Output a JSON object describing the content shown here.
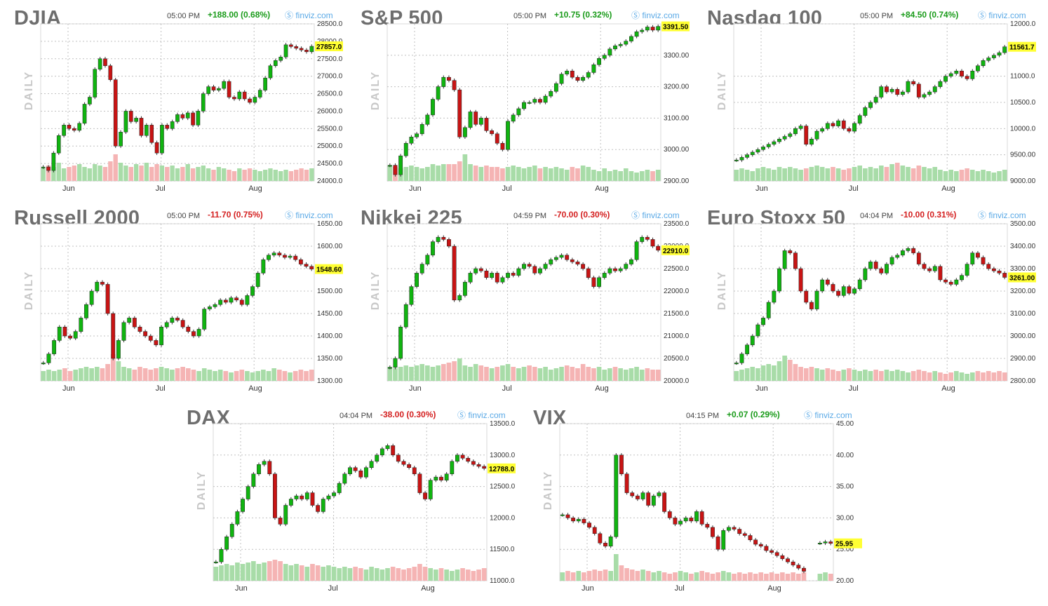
{
  "chart_data": [
    {
      "type": "candlestick",
      "title": "DJIA",
      "time": "05:00 PM",
      "change": "+188.00 (0.68%)",
      "change_dir": "up",
      "source": "finviz.com",
      "period_label": "DAILY",
      "yticks": [
        "28500.0",
        "28000.0",
        "27500.0",
        "27000.0",
        "26500.0",
        "26000.0",
        "25500.0",
        "25000.0",
        "24500.0",
        "24000.0"
      ],
      "ylim": [
        24000,
        28500
      ],
      "months": [
        "Jun",
        "Jul",
        "Aug"
      ],
      "last_label": "27857.0",
      "closes": [
        24400,
        24300,
        24800,
        25300,
        25600,
        25500,
        25450,
        25650,
        26200,
        26400,
        27200,
        27500,
        27300,
        26900,
        25000,
        25400,
        26000,
        25700,
        25800,
        25300,
        25600,
        25100,
        24800,
        25600,
        25500,
        25700,
        25900,
        25800,
        25950,
        25600,
        26000,
        26500,
        26700,
        26600,
        26650,
        26850,
        26400,
        26350,
        26550,
        26350,
        26250,
        26400,
        26600,
        26950,
        27300,
        27450,
        27550,
        27900,
        27850,
        27800,
        27750,
        27700,
        27857
      ],
      "volumes": [
        0.45,
        0.55,
        0.5,
        0.65,
        0.45,
        0.5,
        0.55,
        0.6,
        0.5,
        0.45,
        0.6,
        0.55,
        0.5,
        0.7,
        0.95,
        0.65,
        0.55,
        0.5,
        0.6,
        0.55,
        0.65,
        0.5,
        0.6,
        0.55,
        0.5,
        0.55,
        0.45,
        0.5,
        0.6,
        0.45,
        0.5,
        0.55,
        0.45,
        0.4,
        0.5,
        0.45,
        0.4,
        0.35,
        0.45,
        0.4,
        0.45,
        0.4,
        0.35,
        0.4,
        0.45,
        0.4,
        0.35,
        0.4,
        0.35,
        0.4,
        0.45,
        0.4,
        0.45
      ]
    },
    {
      "type": "candlestick",
      "title": "S&P 500",
      "time": "05:00 PM",
      "change": "+10.75 (0.32%)",
      "change_dir": "up",
      "source": "finviz.com",
      "period_label": "DAILY",
      "yticks": [
        "3300.00",
        "3200.00",
        "3100.00",
        "3000.00",
        "2900.00"
      ],
      "ylim": [
        2900,
        3400
      ],
      "months": [
        "Jun",
        "Jul",
        "Aug"
      ],
      "last_label": "3391.50",
      "closes": [
        2950,
        2920,
        2980,
        3020,
        3040,
        3050,
        3080,
        3110,
        3160,
        3200,
        3230,
        3220,
        3190,
        3040,
        3070,
        3120,
        3080,
        3100,
        3060,
        3050,
        3020,
        3000,
        3090,
        3110,
        3130,
        3150,
        3150,
        3160,
        3150,
        3170,
        3185,
        3210,
        3240,
        3250,
        3230,
        3220,
        3230,
        3245,
        3270,
        3290,
        3300,
        3320,
        3330,
        3335,
        3345,
        3360,
        3375,
        3380,
        3390,
        3380,
        3392
      ],
      "volumes": [
        0.55,
        0.5,
        0.45,
        0.5,
        0.55,
        0.5,
        0.45,
        0.5,
        0.6,
        0.55,
        0.6,
        0.6,
        0.6,
        0.7,
        0.95,
        0.6,
        0.55,
        0.5,
        0.55,
        0.5,
        0.5,
        0.45,
        0.5,
        0.55,
        0.5,
        0.45,
        0.5,
        0.55,
        0.45,
        0.5,
        0.45,
        0.5,
        0.45,
        0.4,
        0.5,
        0.45,
        0.55,
        0.5,
        0.4,
        0.35,
        0.45,
        0.35,
        0.4,
        0.35,
        0.45,
        0.35,
        0.3,
        0.35,
        0.4,
        0.35,
        0.4
      ]
    },
    {
      "type": "candlestick",
      "title": "Nasdaq 100",
      "time": "05:00 PM",
      "change": "+84.50 (0.74%)",
      "change_dir": "up",
      "source": "finviz.com",
      "period_label": "DAILY",
      "yticks": [
        "12000.0",
        "11000.0",
        "10500.0",
        "10000.0",
        "9500.00",
        "9000.00"
      ],
      "ylim": [
        9000,
        12000
      ],
      "months": [
        "Jun",
        "Jul",
        "Aug"
      ],
      "last_label": "11561.7",
      "closes": [
        9400,
        9450,
        9500,
        9550,
        9600,
        9650,
        9700,
        9750,
        9800,
        9850,
        9900,
        10000,
        10050,
        9700,
        9800,
        9950,
        10000,
        10100,
        10050,
        10150,
        10000,
        9950,
        10100,
        10250,
        10400,
        10500,
        10600,
        10800,
        10700,
        10750,
        10650,
        10700,
        10900,
        10850,
        10600,
        10650,
        10700,
        10800,
        10900,
        11000,
        11050,
        11100,
        11000,
        10950,
        11100,
        11200,
        11300,
        11350,
        11400,
        11450,
        11562
      ],
      "volumes": [
        0.4,
        0.45,
        0.4,
        0.35,
        0.45,
        0.5,
        0.45,
        0.4,
        0.5,
        0.45,
        0.5,
        0.45,
        0.4,
        0.45,
        0.5,
        0.55,
        0.5,
        0.45,
        0.5,
        0.45,
        0.4,
        0.45,
        0.5,
        0.55,
        0.45,
        0.5,
        0.45,
        0.55,
        0.5,
        0.6,
        0.65,
        0.55,
        0.5,
        0.45,
        0.55,
        0.5,
        0.45,
        0.5,
        0.4,
        0.35,
        0.4,
        0.35,
        0.4,
        0.45,
        0.4,
        0.35,
        0.4,
        0.35,
        0.3,
        0.35,
        0.4
      ]
    },
    {
      "type": "candlestick",
      "title": "Russell 2000",
      "time": "05:00 PM",
      "change": "-11.70 (0.75%)",
      "change_dir": "down",
      "source": "finviz.com",
      "period_label": "DAILY",
      "yticks": [
        "1650.00",
        "1600.00",
        "1550.00",
        "1500.00",
        "1450.00",
        "1400.00",
        "1350.00",
        "1300.00"
      ],
      "ylim": [
        1300,
        1650
      ],
      "months": [
        "Jun",
        "Jul",
        "Aug"
      ],
      "last_label": "1548.60",
      "closes": [
        1340,
        1360,
        1390,
        1420,
        1400,
        1395,
        1410,
        1440,
        1470,
        1500,
        1520,
        1515,
        1450,
        1350,
        1390,
        1430,
        1440,
        1420,
        1410,
        1400,
        1390,
        1380,
        1420,
        1430,
        1440,
        1435,
        1420,
        1410,
        1400,
        1415,
        1460,
        1465,
        1470,
        1480,
        1475,
        1485,
        1480,
        1470,
        1490,
        1510,
        1540,
        1570,
        1580,
        1585,
        1580,
        1575,
        1578,
        1570,
        1560,
        1555,
        1549
      ],
      "volumes": [
        0.35,
        0.4,
        0.35,
        0.4,
        0.45,
        0.35,
        0.4,
        0.45,
        0.5,
        0.45,
        0.5,
        0.45,
        0.6,
        0.95,
        0.7,
        0.5,
        0.45,
        0.4,
        0.5,
        0.45,
        0.4,
        0.45,
        0.5,
        0.45,
        0.4,
        0.45,
        0.5,
        0.45,
        0.4,
        0.35,
        0.45,
        0.4,
        0.35,
        0.4,
        0.35,
        0.3,
        0.35,
        0.4,
        0.35,
        0.3,
        0.35,
        0.4,
        0.35,
        0.45,
        0.4,
        0.35,
        0.3,
        0.35,
        0.4,
        0.35,
        0.4
      ]
    },
    {
      "type": "candlestick",
      "title": "Nikkei 225",
      "time": "04:59 PM",
      "change": "-70.00 (0.30%)",
      "change_dir": "down",
      "source": "finviz.com",
      "period_label": "DAILY",
      "yticks": [
        "23500.0",
        "23000.0",
        "22500.0",
        "22000.0",
        "21500.0",
        "21000.0",
        "20500.0",
        "20000.0"
      ],
      "ylim": [
        20000,
        23500
      ],
      "months": [
        "Jun",
        "Jul",
        "Aug"
      ],
      "last_label": "22910.0",
      "closes": [
        20300,
        20500,
        21200,
        21700,
        22100,
        22400,
        22600,
        22800,
        23100,
        23200,
        23150,
        23000,
        21800,
        21900,
        22200,
        22400,
        22500,
        22450,
        22300,
        22400,
        22200,
        22300,
        22400,
        22350,
        22500,
        22600,
        22550,
        22400,
        22500,
        22600,
        22700,
        22750,
        22800,
        22700,
        22650,
        22600,
        22500,
        22300,
        22100,
        22300,
        22400,
        22500,
        22450,
        22500,
        22600,
        22700,
        23100,
        23200,
        23150,
        23000,
        22910
      ],
      "volumes": [
        0.5,
        0.45,
        0.5,
        0.55,
        0.5,
        0.55,
        0.6,
        0.55,
        0.5,
        0.55,
        0.6,
        0.65,
        0.7,
        0.8,
        0.55,
        0.5,
        0.6,
        0.55,
        0.5,
        0.45,
        0.5,
        0.55,
        0.6,
        0.5,
        0.45,
        0.5,
        0.55,
        0.5,
        0.45,
        0.5,
        0.4,
        0.45,
        0.5,
        0.55,
        0.5,
        0.45,
        0.6,
        0.5,
        0.45,
        0.5,
        0.4,
        0.45,
        0.5,
        0.45,
        0.4,
        0.45,
        0.5,
        0.4,
        0.45,
        0.4,
        0.4
      ]
    },
    {
      "type": "candlestick",
      "title": "Euro Stoxx 50",
      "time": "04:04 PM",
      "change": "-10.00 (0.31%)",
      "change_dir": "down",
      "source": "finviz.com",
      "period_label": "DAILY",
      "yticks": [
        "3500.00",
        "3400.00",
        "3300.00",
        "3200.00",
        "3100.00",
        "3000.00",
        "2900.00",
        "2800.00"
      ],
      "ylim": [
        2800,
        3500
      ],
      "months": [
        "Jun",
        "Jul",
        "Aug"
      ],
      "last_label": "3261.00",
      "closes": [
        2880,
        2920,
        2960,
        3000,
        3050,
        3080,
        3150,
        3200,
        3300,
        3380,
        3370,
        3300,
        3200,
        3150,
        3120,
        3200,
        3250,
        3230,
        3200,
        3180,
        3220,
        3190,
        3210,
        3250,
        3300,
        3330,
        3300,
        3280,
        3320,
        3350,
        3360,
        3380,
        3390,
        3370,
        3320,
        3300,
        3290,
        3310,
        3250,
        3240,
        3230,
        3250,
        3270,
        3320,
        3370,
        3350,
        3320,
        3300,
        3290,
        3280,
        3261
      ],
      "volumes": [
        0.35,
        0.4,
        0.45,
        0.5,
        0.45,
        0.55,
        0.6,
        0.55,
        0.7,
        0.9,
        0.75,
        0.6,
        0.5,
        0.45,
        0.5,
        0.45,
        0.4,
        0.45,
        0.4,
        0.35,
        0.4,
        0.45,
        0.4,
        0.35,
        0.4,
        0.35,
        0.4,
        0.35,
        0.4,
        0.35,
        0.4,
        0.35,
        0.3,
        0.35,
        0.4,
        0.35,
        0.3,
        0.35,
        0.3,
        0.25,
        0.3,
        0.35,
        0.3,
        0.25,
        0.3,
        0.35,
        0.3,
        0.35,
        0.3,
        0.35,
        0.3
      ]
    },
    {
      "type": "candlestick",
      "title": "DAX",
      "time": "04:04 PM",
      "change": "-38.00 (0.30%)",
      "change_dir": "down",
      "source": "finviz.com",
      "period_label": "DAILY",
      "yticks": [
        "13500.0",
        "13000.0",
        "12500.0",
        "12000.0",
        "11500.0",
        "11000.0"
      ],
      "ylim": [
        11000,
        13500
      ],
      "months": [
        "Jun",
        "Jul",
        "Aug"
      ],
      "last_label": "12788.0",
      "closes": [
        11300,
        11500,
        11700,
        11900,
        12100,
        12300,
        12500,
        12700,
        12850,
        12900,
        12700,
        12000,
        11900,
        12200,
        12300,
        12350,
        12300,
        12400,
        12200,
        12100,
        12300,
        12350,
        12400,
        12550,
        12700,
        12800,
        12750,
        12650,
        12800,
        12900,
        13000,
        13100,
        13150,
        13000,
        12900,
        12850,
        12800,
        12700,
        12400,
        12300,
        12600,
        12650,
        12600,
        12700,
        12900,
        13000,
        12950,
        12900,
        12850,
        12820,
        12788
      ],
      "volumes": [
        0.5,
        0.55,
        0.6,
        0.55,
        0.65,
        0.6,
        0.65,
        0.7,
        0.6,
        0.65,
        0.7,
        0.75,
        0.7,
        0.6,
        0.55,
        0.6,
        0.55,
        0.5,
        0.6,
        0.55,
        0.5,
        0.55,
        0.5,
        0.45,
        0.5,
        0.45,
        0.5,
        0.45,
        0.4,
        0.5,
        0.45,
        0.4,
        0.45,
        0.5,
        0.45,
        0.4,
        0.45,
        0.5,
        0.6,
        0.5,
        0.45,
        0.4,
        0.45,
        0.4,
        0.35,
        0.4,
        0.45,
        0.4,
        0.35,
        0.4,
        0.45
      ]
    },
    {
      "type": "candlestick",
      "title": "VIX",
      "time": "04:15 PM",
      "change": "+0.07 (0.29%)",
      "change_dir": "up",
      "source": "finviz.com",
      "period_label": "DAILY",
      "yticks": [
        "45.00",
        "40.00",
        "35.00",
        "30.00",
        "25.00",
        "20.00"
      ],
      "ylim": [
        20,
        45
      ],
      "months": [
        "Jun",
        "Jul",
        "Aug"
      ],
      "last_label": "25.95",
      "closes": [
        30.5,
        30,
        29.5,
        29.8,
        29.2,
        28.5,
        27.5,
        26,
        25.5,
        27,
        40,
        37,
        34,
        33.5,
        33,
        34,
        32,
        33.5,
        34,
        31,
        30,
        29,
        29.5,
        30,
        29.5,
        31,
        29,
        28.5,
        27,
        25,
        28,
        28.5,
        28.2,
        27.5,
        27.2,
        26.5,
        25.8,
        25.5,
        24.8,
        24.5,
        24,
        23.5,
        23,
        22.5,
        22,
        21.5,
        null,
        null,
        26,
        26.2,
        25.95
      ],
      "volumes": [
        0.3,
        0.35,
        0.3,
        0.35,
        0.3,
        0.35,
        0.4,
        0.35,
        0.4,
        0.35,
        0.95,
        0.55,
        0.45,
        0.4,
        0.35,
        0.4,
        0.35,
        0.3,
        0.35,
        0.3,
        0.25,
        0.3,
        0.35,
        0.3,
        0.25,
        0.3,
        0.35,
        0.3,
        0.25,
        0.3,
        0.35,
        0.3,
        0.25,
        0.3,
        0.25,
        0.3,
        0.25,
        0.3,
        0.25,
        0.3,
        0.25,
        0.3,
        0.25,
        0.3,
        0.25,
        0.3,
        0.25,
        0.3,
        0.25,
        0.3,
        0.25
      ]
    }
  ],
  "colors": {
    "up_candle": "#10b410",
    "down_candle": "#c81414",
    "up_volume": "#a8dca8",
    "down_volume": "#f5b4b4",
    "grid": "#c0c0c0",
    "last_price_bg": "#ffff33",
    "title": "#6e6e6e",
    "source": "#5aa9e6"
  }
}
